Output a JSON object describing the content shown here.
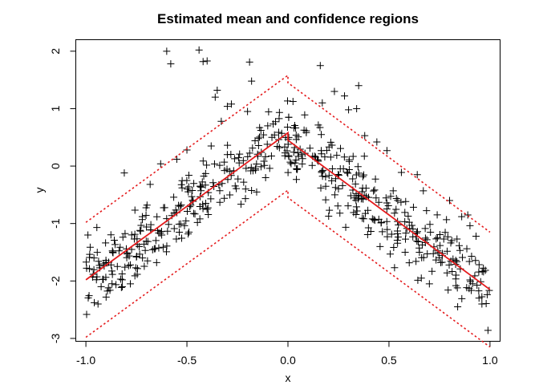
{
  "chart_data": {
    "type": "scatter",
    "title": "Estimated mean and confidence regions",
    "xlabel": "x",
    "ylabel": "y",
    "xlim": [
      -1.05,
      1.05
    ],
    "ylim": [
      -3.05,
      2.2
    ],
    "xticks": [
      -1.0,
      -0.5,
      0.0,
      0.5,
      1.0
    ],
    "xtick_labels": [
      "-1.0",
      "-0.5",
      "0.0",
      "0.5",
      "1.0"
    ],
    "yticks": [
      -3,
      -2,
      -1,
      0,
      1,
      2
    ],
    "ytick_labels": [
      "-3",
      "-2",
      "-1",
      "0",
      "1",
      "2"
    ],
    "grid": false,
    "line_color": "#e41a1c",
    "point_color": "#000000",
    "point_symbol": "+",
    "mean": [
      {
        "x": -1.0,
        "y": -1.98
      },
      {
        "x": 0.0,
        "y": 0.58
      },
      {
        "x": 0.0,
        "y": 0.45
      },
      {
        "x": 1.0,
        "y": -2.15
      }
    ],
    "upper_band": [
      {
        "x": -1.0,
        "y": -0.98
      },
      {
        "x": 0.0,
        "y": 1.58
      },
      {
        "x": 0.0,
        "y": 1.45
      },
      {
        "x": 1.0,
        "y": -1.15
      }
    ],
    "lower_band": [
      {
        "x": -1.0,
        "y": -2.98
      },
      {
        "x": 0.0,
        "y": -0.42
      },
      {
        "x": 0.0,
        "y": -0.55
      },
      {
        "x": 1.0,
        "y": -3.15
      }
    ],
    "points": [
      {
        "x": -0.6,
        "y": 2.0
      },
      {
        "x": -0.58,
        "y": 1.78
      },
      {
        "x": -0.44,
        "y": 2.02
      },
      {
        "x": -0.42,
        "y": 1.82
      },
      {
        "x": -0.4,
        "y": 1.83
      },
      {
        "x": -0.19,
        "y": 1.81
      },
      {
        "x": -0.18,
        "y": 1.48
      },
      {
        "x": -0.36,
        "y": 1.2
      },
      {
        "x": -0.35,
        "y": 1.32
      },
      {
        "x": -0.3,
        "y": 1.04
      },
      {
        "x": -0.28,
        "y": 1.08
      },
      {
        "x": -0.33,
        "y": 0.78
      },
      {
        "x": -0.2,
        "y": 0.95
      },
      {
        "x": -0.38,
        "y": 0.35
      },
      {
        "x": -0.5,
        "y": 0.28
      },
      {
        "x": -0.55,
        "y": 0.12
      },
      {
        "x": -0.63,
        "y": 0.04
      },
      {
        "x": -0.81,
        "y": -0.12
      },
      {
        "x": 0.16,
        "y": 1.75
      },
      {
        "x": 0.35,
        "y": 1.4
      },
      {
        "x": 0.23,
        "y": 1.3
      },
      {
        "x": 0.28,
        "y": 1.22
      },
      {
        "x": 0.17,
        "y": 1.1
      },
      {
        "x": 0.3,
        "y": 0.98
      },
      {
        "x": 0.34,
        "y": 1.0
      },
      {
        "x": 0.44,
        "y": 0.42
      },
      {
        "x": 0.49,
        "y": 0.27
      },
      {
        "x": 0.38,
        "y": 0.53
      },
      {
        "x": 0.64,
        "y": -0.15
      },
      {
        "x": 0.67,
        "y": -0.43
      },
      {
        "x": 0.8,
        "y": -0.6
      },
      {
        "x": 0.86,
        "y": -0.88
      },
      {
        "x": 0.89,
        "y": -0.85
      },
      {
        "x": 0.99,
        "y": -2.86
      },
      {
        "x": 0.96,
        "y": -2.4
      },
      {
        "x": 0.84,
        "y": -2.45
      },
      {
        "x": 0.7,
        "y": -2.05
      },
      {
        "x": 0.66,
        "y": -1.95
      },
      {
        "x": 0.58,
        "y": -1.5
      },
      {
        "x": -0.94,
        "y": -2.4
      },
      {
        "x": -0.9,
        "y": -2.28
      },
      {
        "x": -0.82,
        "y": -1.98
      },
      {
        "x": -0.78,
        "y": -1.72
      },
      {
        "x": -0.72,
        "y": -1.6
      },
      {
        "x": -0.65,
        "y": -1.68
      },
      {
        "x": -0.82,
        "y": -2.1
      },
      {
        "x": -0.78,
        "y": -2.05
      },
      {
        "x": -0.99,
        "y": -1.2
      },
      {
        "x": -0.96,
        "y": -1.6
      },
      {
        "x": -0.3,
        "y": 0.2
      },
      {
        "x": -0.1,
        "y": 0.7
      }
    ]
  }
}
